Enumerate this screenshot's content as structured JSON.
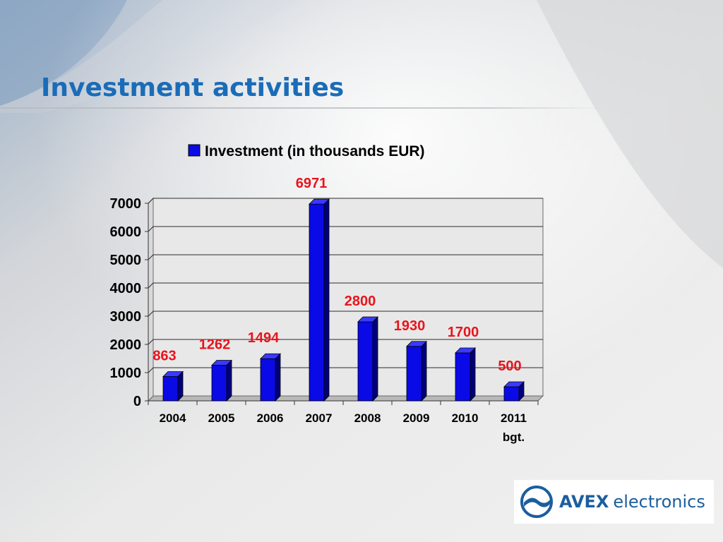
{
  "slide": {
    "title": "Investment activities"
  },
  "logo": {
    "brand": "AVEX",
    "sub": "electronics"
  },
  "colors": {
    "title": "#1a6cb8",
    "bar": "#0a0ae6",
    "data_label": "#e8141c",
    "logo": "#1b5e9e"
  },
  "chart_data": {
    "type": "bar",
    "title": "",
    "xlabel": "",
    "ylabel": "",
    "categories": [
      "2004",
      "2005",
      "2006",
      "2007",
      "2008",
      "2009",
      "2010",
      "2011 bgt."
    ],
    "series": [
      {
        "name": "Investment (in thousands EUR)",
        "values": [
          863,
          1262,
          1494,
          6971,
          2800,
          1930,
          1700,
          500
        ]
      }
    ],
    "ylim": [
      0,
      7000
    ],
    "yticks": [
      0,
      1000,
      2000,
      3000,
      4000,
      5000,
      6000,
      7000
    ],
    "grid": true,
    "legend": "top",
    "data_labels": true,
    "style": "3d-column"
  }
}
